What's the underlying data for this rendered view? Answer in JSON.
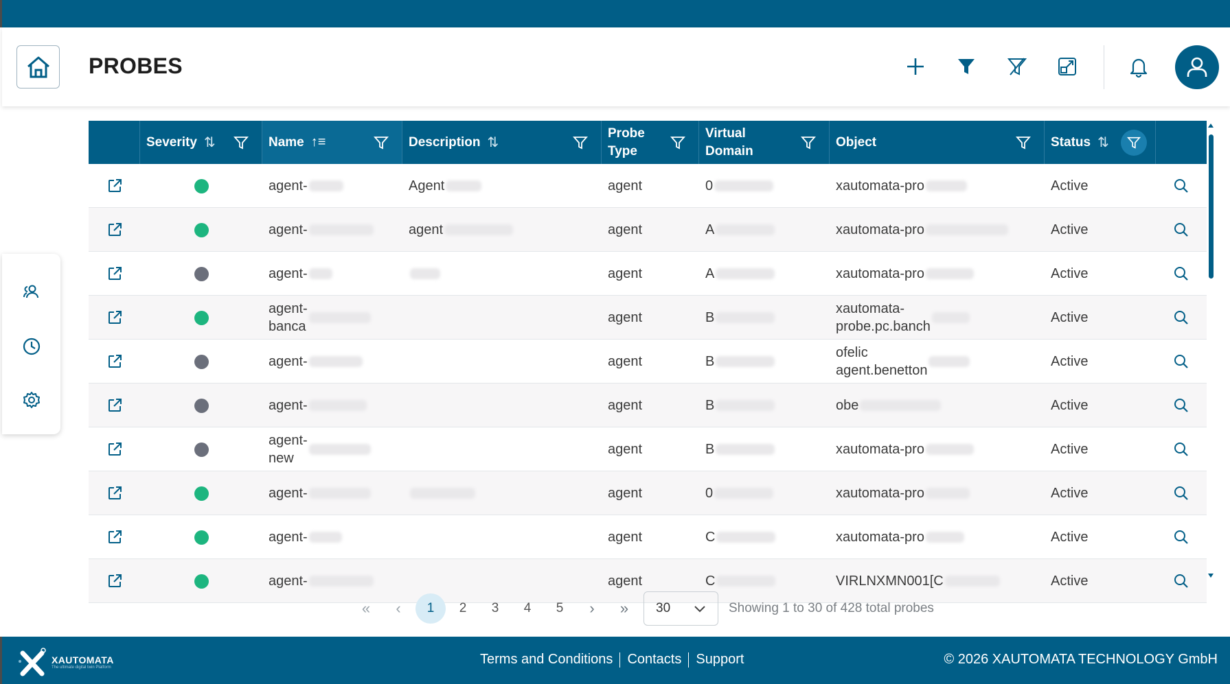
{
  "header": {
    "title": "PROBES",
    "icons": [
      "home-icon",
      "plus-icon",
      "filter-icon",
      "filter-clear-icon",
      "expand-icon",
      "bell-icon",
      "user-icon"
    ]
  },
  "sidebar": {
    "icons": [
      "users-icon",
      "clock-icon",
      "gear-icon"
    ]
  },
  "table": {
    "columns": [
      {
        "label": "",
        "sortable": false
      },
      {
        "label": "Severity",
        "sortable": true
      },
      {
        "label": "Name",
        "sortable": true,
        "sorted": "ascending"
      },
      {
        "label": "Description",
        "sortable": true
      },
      {
        "label": "Probe Type",
        "sortable": false
      },
      {
        "label": "Virtual Domain",
        "sortable": false
      },
      {
        "label": "Object",
        "sortable": false
      },
      {
        "label": "Status",
        "sortable": true,
        "filter_active": true
      },
      {
        "label": "",
        "sortable": false
      }
    ],
    "rows": [
      {
        "severity": "green",
        "name": "agent-",
        "description": "Agent",
        "probe_type": "agent",
        "virtual_domain": "0",
        "object": "xautomata-pro",
        "status": "Active"
      },
      {
        "severity": "green",
        "name": "agent-",
        "description": "agent",
        "probe_type": "agent",
        "virtual_domain": "A",
        "object": "xautomata-pro",
        "status": "Active"
      },
      {
        "severity": "gray",
        "name": "agent-",
        "description": "",
        "probe_type": "agent",
        "virtual_domain": "A",
        "object": "xautomata-pro",
        "status": "Active"
      },
      {
        "severity": "green",
        "name": "agent-\nbanca",
        "description": "",
        "probe_type": "agent",
        "virtual_domain": "B",
        "object": "xautomata-\nprobe.pc.banch",
        "status": "Active"
      },
      {
        "severity": "gray",
        "name": "agent-",
        "description": "",
        "probe_type": "agent",
        "virtual_domain": "B",
        "object": "ofelic\nagent.benetton",
        "status": "Active"
      },
      {
        "severity": "gray",
        "name": "agent-",
        "description": "",
        "probe_type": "agent",
        "virtual_domain": "B",
        "object": "obe",
        "status": "Active"
      },
      {
        "severity": "gray",
        "name": "agent-\nnew",
        "description": "",
        "probe_type": "agent",
        "virtual_domain": "B",
        "object": "xautomata-pro",
        "status": "Active"
      },
      {
        "severity": "green",
        "name": "agent-",
        "description": "",
        "probe_type": "agent",
        "virtual_domain": "0",
        "object": "xautomata-pro",
        "status": "Active"
      },
      {
        "severity": "green",
        "name": "agent-",
        "description": "",
        "probe_type": "agent",
        "virtual_domain": "C",
        "object": "xautomata-pro",
        "status": "Active"
      },
      {
        "severity": "green",
        "name": "agent-",
        "description": "",
        "probe_type": "agent",
        "virtual_domain": "C",
        "object": "VIRLNXMN001[C",
        "status": "Active"
      }
    ]
  },
  "pagination": {
    "first": "«",
    "prev": "‹",
    "pages": [
      "1",
      "2",
      "3",
      "4",
      "5"
    ],
    "current_page": "1",
    "next": "›",
    "last": "»",
    "page_size": "30",
    "summary": "Showing 1 to 30 of 428 total probes"
  },
  "footer": {
    "logo_text": "XAUTOMATA",
    "logo_tagline": "The ultimate digital twin Platform",
    "links": [
      "Terms and Conditions",
      "Contacts",
      "Support"
    ],
    "copyright": "© 2026 XAUTOMATA TECHNOLOGY GmbH"
  },
  "colors": {
    "primary": "#015e87",
    "severity_green": "#1db57f",
    "severity_gray": "#6b6f7b"
  }
}
